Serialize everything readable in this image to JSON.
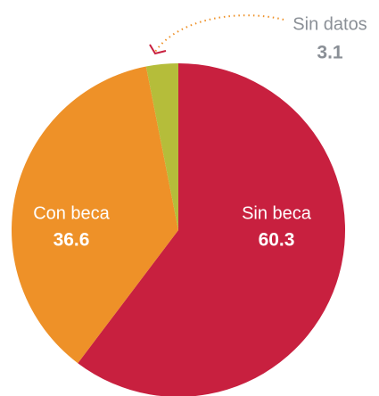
{
  "chart_data": {
    "type": "pie",
    "categories": [
      "Sin beca",
      "Con beca",
      "Sin datos"
    ],
    "values": [
      60.3,
      36.6,
      3.1
    ],
    "colors": [
      "#c8203f",
      "#ee9128",
      "#b5bd3a"
    ]
  }
}
